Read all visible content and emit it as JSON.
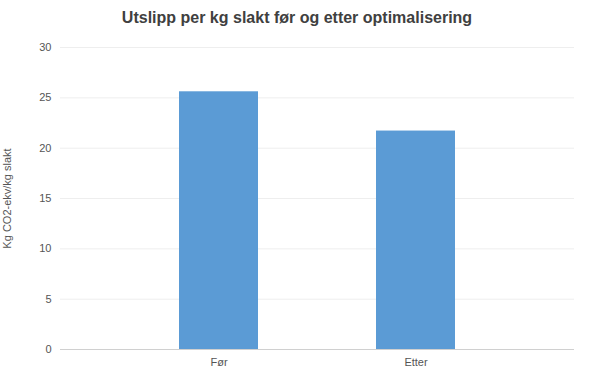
{
  "chart_data": {
    "type": "bar",
    "title": "Utslipp per kg slakt før og etter optimalisering",
    "categories": [
      "Før",
      "Etter"
    ],
    "values": [
      25.6,
      21.7
    ],
    "color": "#5b9bd5",
    "ylabel": "Kg CO2-ekv/kg slakt",
    "ylim": [
      0,
      30
    ],
    "yticks": [
      0,
      5,
      10,
      15,
      20,
      25,
      30
    ],
    "grid": true
  }
}
